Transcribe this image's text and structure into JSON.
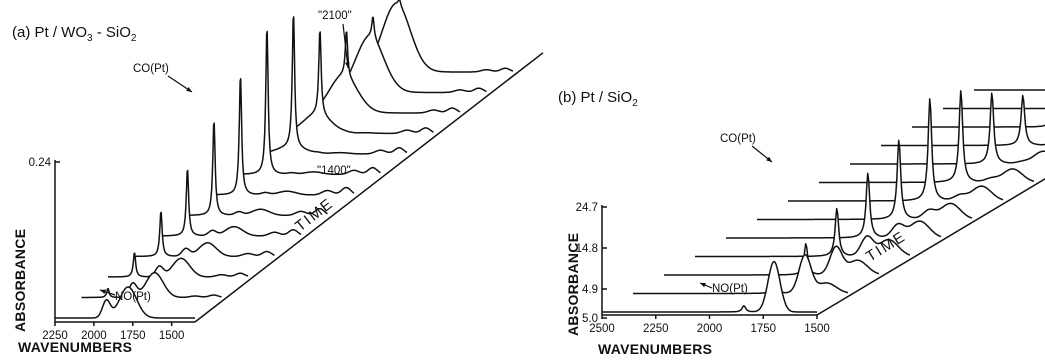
{
  "chart_data": [
    {
      "panel": "a",
      "type": "line",
      "title": "(a) Pt / WO3 - SiO2",
      "title_parts": {
        "prefix": "(a) Pt / WO",
        "sub1": "3",
        "mid": " - SiO",
        "sub2": "2"
      },
      "xlabel": "WAVENUMBERS",
      "ylabel": "ABSORBANCE",
      "depth_label": "TIME",
      "x_ticks": [
        "2250",
        "2000",
        "1750",
        "1500"
      ],
      "y_ticks": [
        "0.24"
      ],
      "xlim": [
        2250,
        1350
      ],
      "annotations": {
        "co": "CO(Pt)",
        "no": "NO(Pt)",
        "band_2100": "\"2100\"",
        "band_1400": "\"1400\""
      },
      "spectra_count": 13,
      "band_positions": {
        "co_pt": 2080,
        "no_pt": 1780,
        "no_shoulder": 1920,
        "band_2100": 2100,
        "band_1400": 1400
      },
      "co_peak_heights": [
        0.0,
        0.015,
        0.04,
        0.074,
        0.11,
        0.155,
        0.195,
        0.24,
        0.22,
        0.14,
        0.075,
        0.035,
        0.01
      ],
      "no_peak_heights": [
        0.05,
        0.04,
        0.03,
        0.022,
        0.015,
        0.01,
        0.006,
        0.004,
        0.002,
        0.001,
        0.0,
        0.0,
        0.0
      ],
      "band_1400_heights": [
        0.0,
        0.004,
        0.006,
        0.008,
        0.01,
        0.011,
        0.012,
        0.011,
        0.01,
        0.009,
        0.008,
        0.007,
        0.006
      ],
      "broad_2100_heights": [
        0.0,
        0.0,
        0.0,
        0.0,
        0.0,
        0.0,
        0.0,
        0.0,
        0.01,
        0.03,
        0.06,
        0.09,
        0.11
      ]
    },
    {
      "panel": "b",
      "type": "line",
      "title": "(b) Pt / SiO2",
      "title_parts": {
        "prefix": "(b) Pt / SiO",
        "sub1": "2"
      },
      "xlabel": "WAVENUMBERS",
      "ylabel": "ABSORBANCE",
      "depth_label": "TIME",
      "x_ticks": [
        "2500",
        "2250",
        "2000",
        "1750",
        "1500"
      ],
      "y_ticks": [
        "24.7",
        "14.8",
        "4.9",
        "- 5.0"
      ],
      "xlim": [
        2500,
        1500
      ],
      "annotations": {
        "co": "CO(Pt)",
        "no": "NO(Pt)"
      },
      "spectra_count": 13,
      "band_positions": {
        "co_pt": 1840,
        "no_pt": 1700,
        "side_band": 1600
      },
      "co_peak_heights": [
        1.5,
        4.0,
        7.5,
        11.5,
        15.5,
        19.0,
        24.5,
        22.0,
        17.0,
        12.0,
        7.0,
        3.5,
        1.0
      ],
      "no_peak_heights": [
        12.0,
        9.0,
        6.5,
        4.5,
        3.0,
        2.0,
        1.2,
        0.8,
        0.4,
        0.2,
        0.1,
        0.0,
        0.0
      ],
      "side_band_heights": [
        0.0,
        2.5,
        3.5,
        4.0,
        4.0,
        3.8,
        3.5,
        3.2,
        3.0,
        3.5,
        5.0,
        7.0,
        11.0
      ]
    }
  ]
}
